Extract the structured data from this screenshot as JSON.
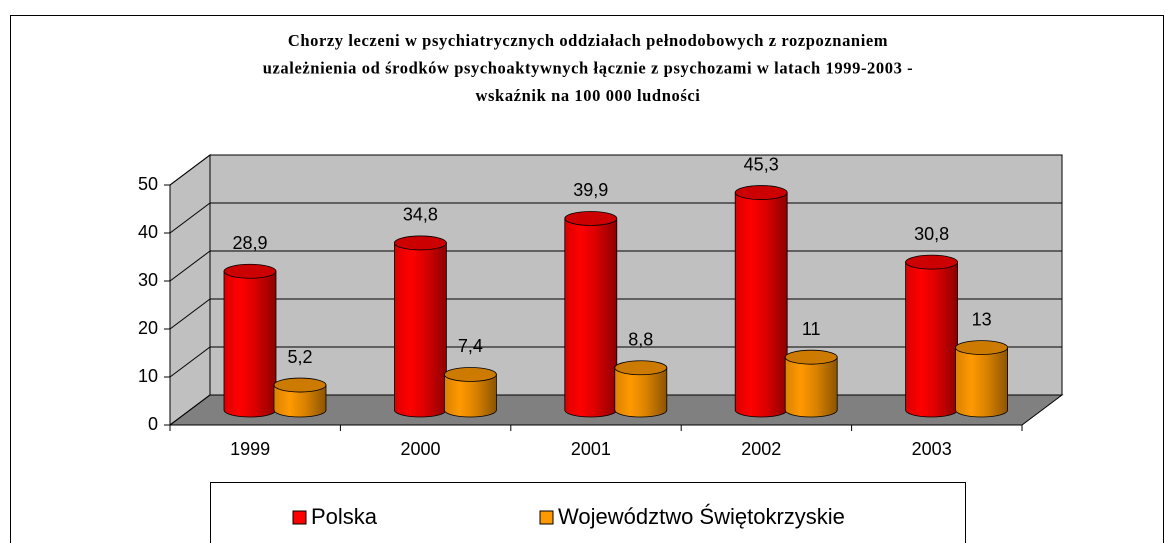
{
  "chart_data": {
    "type": "bar3d",
    "title": [
      "Chorzy leczeni w psychiatrycznych oddziałach pełnodobowych z rozpoznaniem",
      "uzależnienia od środków psychoaktywnych łącznie z psychozami w latach 1999-2003 -",
      "wskaźnik na 100 000 ludności"
    ],
    "categories": [
      "1999",
      "2000",
      "2001",
      "2002",
      "2003"
    ],
    "series": [
      {
        "name": "Polska",
        "color": "#ff0000",
        "values": [
          28.9,
          34.8,
          39.9,
          45.3,
          30.8
        ],
        "value_labels": [
          "28,9",
          "34,8",
          "39,9",
          "45,3",
          "30,8"
        ]
      },
      {
        "name": "Województwo Świętokrzyskie",
        "color": "#ff9900",
        "values": [
          5.2,
          7.4,
          8.8,
          11,
          13
        ],
        "value_labels": [
          "5,2",
          "7,4",
          "8,8",
          "11",
          "13"
        ]
      }
    ],
    "ylim": [
      0,
      50
    ],
    "yticks": [
      0,
      10,
      20,
      30,
      40,
      50
    ],
    "grid": true
  }
}
